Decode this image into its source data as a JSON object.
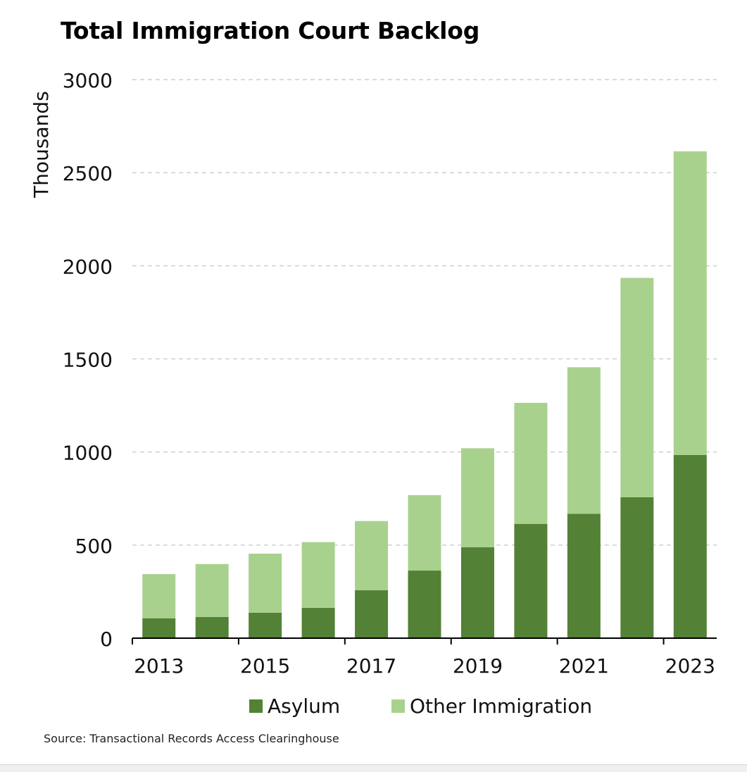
{
  "chart_data": {
    "type": "bar",
    "stacked": true,
    "title": "Total Immigration Court Backlog",
    "ylabel": "Thousands",
    "xlabel": "",
    "ylim": [
      0,
      3000
    ],
    "yticks": [
      0,
      500,
      1000,
      1500,
      2000,
      2500,
      3000
    ],
    "categories": [
      "2013",
      "2014",
      "2015",
      "2016",
      "2017",
      "2018",
      "2019",
      "2020",
      "2021",
      "2022",
      "2023"
    ],
    "xtick_labels": [
      "2013",
      "",
      "2015",
      "",
      "2017",
      "",
      "2019",
      "",
      "2021",
      "",
      "2023"
    ],
    "series": [
      {
        "name": "Asylum",
        "color": "#538135",
        "values": [
          107,
          114,
          137,
          163,
          258,
          363,
          488,
          614,
          668,
          757,
          984
        ]
      },
      {
        "name": "Other Immigration",
        "color": "#a9d18e",
        "values": [
          237,
          284,
          317,
          353,
          371,
          405,
          532,
          650,
          787,
          1178,
          1631
        ]
      }
    ],
    "grid": "horizontal-dashed",
    "legend_position": "bottom-center",
    "source": "Source: Transactional Records Access Clearinghouse"
  }
}
